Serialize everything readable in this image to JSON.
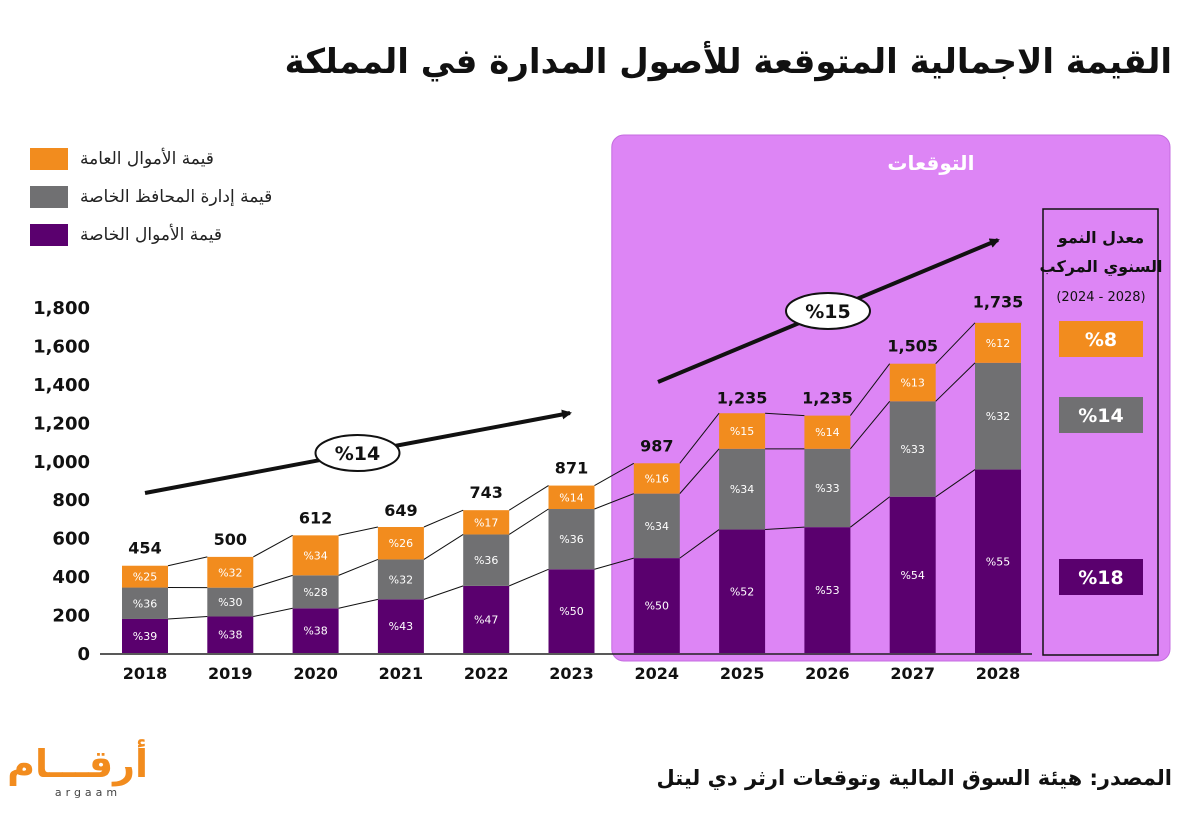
{
  "title": "القيمة الاجمالية المتوقعة للأصول المدارة في المملكة",
  "source": "المصدر: هيئة السوق المالية وتوقعات ارثر دي ليتل",
  "logo": {
    "arabic": "أرقـــام",
    "latin": "argaam",
    "color": "#f28c1e"
  },
  "colors": {
    "public": "#f28c1e",
    "portfolio": "#707072",
    "private": "#5a006e",
    "forecast_bg": "#dd85f5",
    "forecast_border": "#c56ce0"
  },
  "chart_data": {
    "type": "bar",
    "stacked": true,
    "categories": [
      "2018",
      "2019",
      "2020",
      "2021",
      "2022",
      "2023",
      "2024",
      "2025",
      "2026",
      "2027",
      "2028"
    ],
    "ylim": [
      0,
      1800
    ],
    "yticks": [
      "0",
      "200",
      "400",
      "600",
      "800",
      "1,000",
      "1,200",
      "1,400",
      "1,600",
      "1,800"
    ],
    "totals": [
      454,
      500,
      612,
      649,
      743,
      871,
      987,
      1235,
      1235,
      1505,
      1735
    ],
    "total_labels": [
      "454",
      "500",
      "612",
      "649",
      "743",
      "871",
      "987",
      "1,235",
      "1,235",
      "1,505",
      "1,735"
    ],
    "series": [
      {
        "name": "قيمة الأموال الخاصة",
        "color": "#5a006e",
        "percents": [
          39,
          38,
          38,
          43,
          47,
          50,
          50,
          52,
          53,
          54,
          55
        ],
        "labels": [
          "%39",
          "%38",
          "%38",
          "%43",
          "%47",
          "%50",
          "%50",
          "%52",
          "%53",
          "%54",
          "%55"
        ]
      },
      {
        "name": "قيمة إدارة المحافظ الخاصة",
        "color": "#707072",
        "percents": [
          36,
          30,
          28,
          32,
          36,
          36,
          34,
          34,
          33,
          33,
          32
        ],
        "labels": [
          "%36",
          "%30",
          "%28",
          "%32",
          "%36",
          "%36",
          "%34",
          "%34",
          "%33",
          "%33",
          "%32"
        ]
      },
      {
        "name": "قيمة الأموال العامة",
        "color": "#f28c1e",
        "percents": [
          25,
          32,
          34,
          26,
          17,
          14,
          16,
          15,
          14,
          13,
          12
        ],
        "labels": [
          "%25",
          "%32",
          "%34",
          "%26",
          "%17",
          "%14",
          "%16",
          "%15",
          "%14",
          "%13",
          "%12"
        ]
      }
    ],
    "legend": [
      "قيمة الأموال العامة",
      "قيمة إدارة المحافظ الخاصة",
      "قيمة الأموال الخاصة"
    ],
    "legend_colors": [
      "#f28c1e",
      "#707072",
      "#5a006e"
    ],
    "forecast": {
      "label": "التوقعات",
      "from": "2024",
      "to": "2028"
    },
    "growth_arrows": [
      {
        "label": "%14",
        "from": "2018",
        "to": "2023"
      },
      {
        "label": "%15",
        "from": "2023",
        "to": "2028"
      }
    ],
    "cagr_box": {
      "title_line1": "معدل النمو",
      "title_line2": "السنوي المركب",
      "period": "(2024 - 2028)",
      "values": [
        {
          "label": "%8",
          "color": "#f28c1e"
        },
        {
          "label": "%14",
          "color": "#707072"
        },
        {
          "label": "%18",
          "color": "#5a006e"
        }
      ]
    }
  }
}
